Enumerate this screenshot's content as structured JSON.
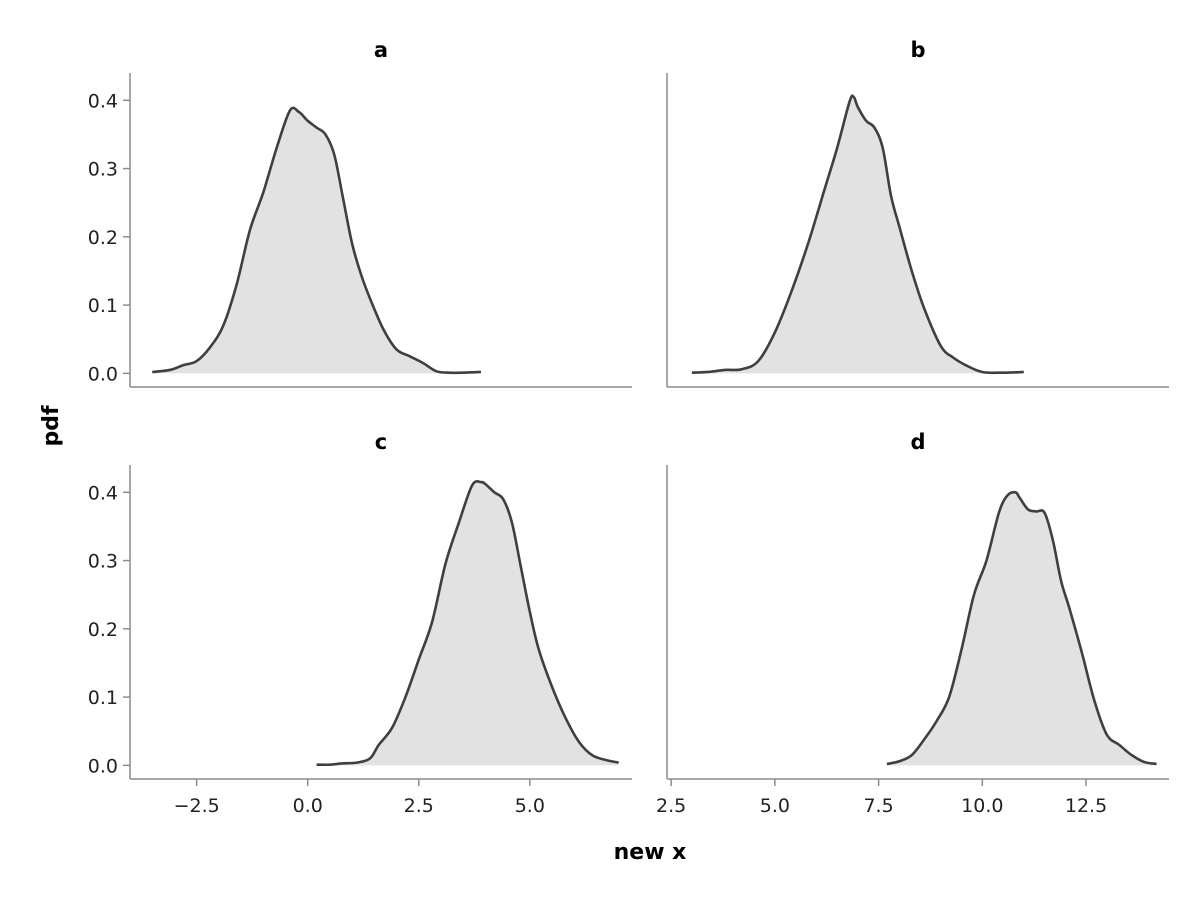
{
  "chart_data": {
    "type": "area",
    "ylabel": "pdf",
    "xlabel": "new x",
    "colors": {
      "fill": "#e2e2e2",
      "line": "#3f3f3f",
      "axis": "#8c8c8c"
    },
    "grid": false,
    "y_ticks": [
      0.0,
      0.1,
      0.2,
      0.3,
      0.4
    ],
    "y_tick_labels": [
      "0.0",
      "0.1",
      "0.2",
      "0.3",
      "0.4"
    ],
    "ylim": [
      -0.02,
      0.44
    ],
    "columns": [
      {
        "xlim": [
          -4.0,
          7.3
        ],
        "x_ticks": [
          -2.5,
          0.0,
          2.5,
          5.0
        ],
        "x_tick_labels": [
          "−2.5",
          "0.0",
          "2.5",
          "5.0"
        ]
      },
      {
        "xlim": [
          2.4,
          14.5
        ],
        "x_ticks": [
          2.5,
          5.0,
          7.5,
          10.0,
          12.5
        ],
        "x_tick_labels": [
          "2.5",
          "5.0",
          "7.5",
          "10.0",
          "12.5"
        ]
      }
    ],
    "panels": [
      {
        "title": "a",
        "row": 0,
        "col": 0,
        "x": [
          -3.5,
          -3.1,
          -2.8,
          -2.5,
          -2.2,
          -1.9,
          -1.6,
          -1.3,
          -1.0,
          -0.7,
          -0.4,
          -0.2,
          0.0,
          0.2,
          0.4,
          0.6,
          0.8,
          1.0,
          1.2,
          1.4,
          1.7,
          2.0,
          2.3,
          2.6,
          2.9,
          3.2,
          3.5,
          3.9
        ],
        "y": [
          0.002,
          0.005,
          0.012,
          0.018,
          0.038,
          0.07,
          0.13,
          0.21,
          0.265,
          0.33,
          0.385,
          0.383,
          0.37,
          0.36,
          0.35,
          0.32,
          0.255,
          0.19,
          0.145,
          0.11,
          0.065,
          0.035,
          0.025,
          0.015,
          0.003,
          0.001,
          0.001,
          0.002
        ]
      },
      {
        "title": "b",
        "row": 0,
        "col": 1,
        "x": [
          3.0,
          3.4,
          3.8,
          4.2,
          4.6,
          5.0,
          5.4,
          5.8,
          6.2,
          6.5,
          6.8,
          6.9,
          7.0,
          7.2,
          7.4,
          7.6,
          7.8,
          8.0,
          8.3,
          8.6,
          9.0,
          9.3,
          9.6,
          10.0,
          10.5,
          11.0
        ],
        "y": [
          0.001,
          0.002,
          0.005,
          0.006,
          0.018,
          0.06,
          0.12,
          0.19,
          0.27,
          0.33,
          0.398,
          0.405,
          0.39,
          0.37,
          0.36,
          0.33,
          0.26,
          0.215,
          0.15,
          0.095,
          0.04,
          0.023,
          0.012,
          0.002,
          0.001,
          0.002
        ]
      },
      {
        "title": "c",
        "row": 1,
        "col": 0,
        "x": [
          0.2,
          0.5,
          0.8,
          1.1,
          1.4,
          1.6,
          1.9,
          2.2,
          2.5,
          2.8,
          3.1,
          3.4,
          3.7,
          3.9,
          4.0,
          4.2,
          4.4,
          4.6,
          4.8,
          5.0,
          5.2,
          5.5,
          5.8,
          6.1,
          6.4,
          6.7,
          7.0
        ],
        "y": [
          0.001,
          0.001,
          0.003,
          0.004,
          0.01,
          0.03,
          0.055,
          0.1,
          0.155,
          0.21,
          0.295,
          0.355,
          0.41,
          0.415,
          0.412,
          0.4,
          0.39,
          0.355,
          0.29,
          0.225,
          0.17,
          0.115,
          0.07,
          0.035,
          0.015,
          0.008,
          0.004
        ]
      },
      {
        "title": "d",
        "row": 1,
        "col": 1,
        "x": [
          7.7,
          8.0,
          8.3,
          8.6,
          8.9,
          9.2,
          9.5,
          9.8,
          10.1,
          10.4,
          10.6,
          10.8,
          10.9,
          11.1,
          11.3,
          11.5,
          11.7,
          11.9,
          12.1,
          12.4,
          12.7,
          13.0,
          13.3,
          13.6,
          13.9,
          14.2
        ],
        "y": [
          0.002,
          0.006,
          0.015,
          0.038,
          0.065,
          0.1,
          0.17,
          0.25,
          0.3,
          0.37,
          0.395,
          0.4,
          0.392,
          0.375,
          0.372,
          0.37,
          0.33,
          0.27,
          0.23,
          0.165,
          0.095,
          0.045,
          0.03,
          0.015,
          0.005,
          0.002
        ]
      }
    ]
  }
}
